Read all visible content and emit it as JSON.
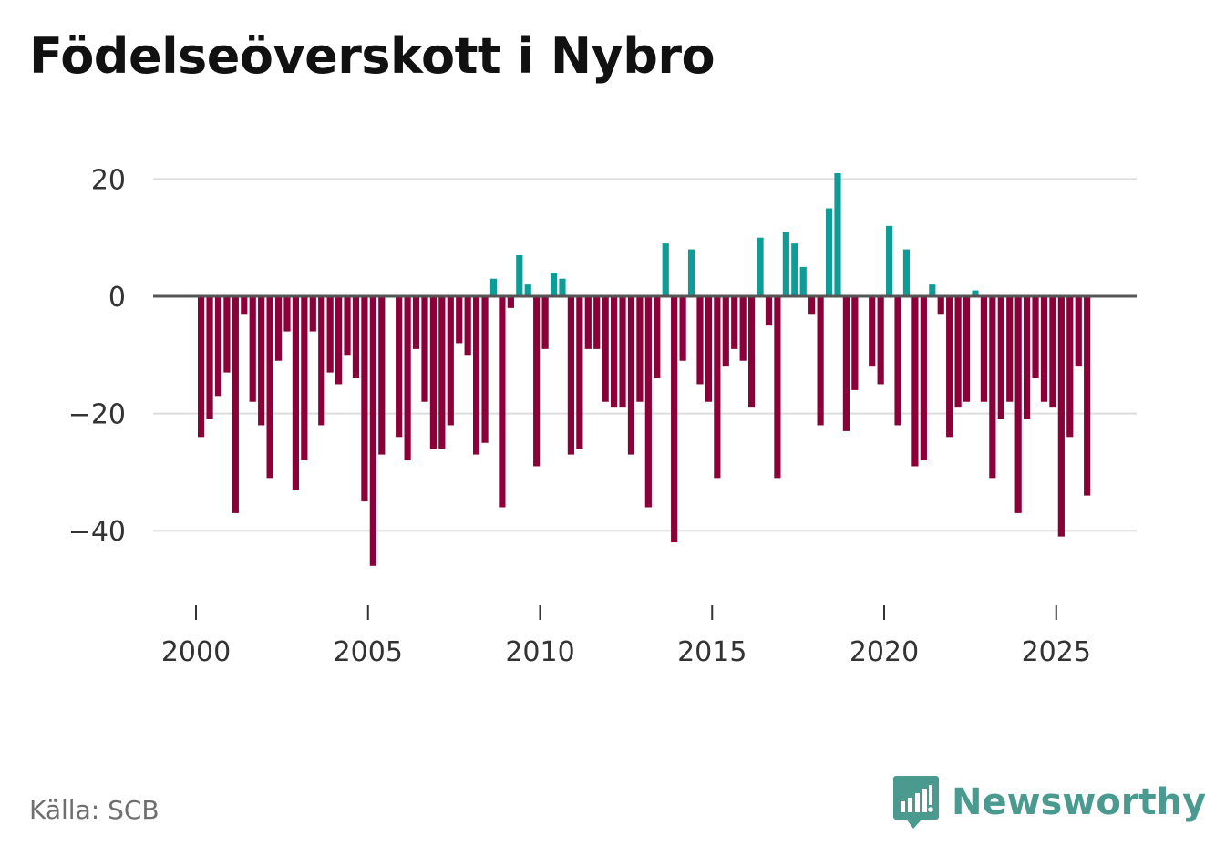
{
  "title": "Födelseöverskott i Nybro",
  "source": "Källa: SCB",
  "brand": {
    "name": "Newsworthy",
    "icon": "bar-chart-speech-bubble-icon"
  },
  "colors": {
    "positive": "#0e9d96",
    "negative": "#8b0039",
    "zero_line": "#555555",
    "grid": "#dddddd",
    "brand": "#4a9a90"
  },
  "chart_data": {
    "type": "bar",
    "title": "Födelseöverskott i Nybro",
    "xlabel": "",
    "ylabel": "",
    "ylim": [
      -50,
      25
    ],
    "xlim": [
      1999,
      2027.5
    ],
    "grid": true,
    "y_ticks": [
      20,
      0,
      -20,
      -40
    ],
    "y_tick_labels": [
      "20",
      "0",
      "−20",
      "−40"
    ],
    "x_ticks": [
      2000,
      2005,
      2010,
      2015,
      2020,
      2025
    ],
    "x_tick_labels": [
      "2000",
      "2005",
      "2010",
      "2015",
      "2020",
      "2025"
    ],
    "start_year": 2000,
    "periods_per_year": 4,
    "series": [
      {
        "name": "Födelseöverskott",
        "values": [
          -24,
          -21,
          -17,
          -13,
          -37,
          -3,
          -18,
          -22,
          -31,
          -11,
          -6,
          -33,
          -28,
          -6,
          -22,
          -13,
          -15,
          -10,
          -14,
          -35,
          -46,
          -27,
          0,
          -24,
          -28,
          -9,
          -18,
          -26,
          -26,
          -22,
          -8,
          -10,
          -27,
          -25,
          3,
          -36,
          -2,
          7,
          2,
          -29,
          -9,
          4,
          3,
          -27,
          -26,
          -9,
          -9,
          -18,
          -19,
          -19,
          -27,
          -18,
          -36,
          -14,
          9,
          -42,
          -11,
          8,
          -15,
          -18,
          -31,
          -12,
          -9,
          -11,
          -19,
          10,
          -5,
          -31,
          11,
          9,
          5,
          -3,
          -22,
          15,
          21,
          -23,
          -16,
          0,
          -12,
          -15,
          12,
          -22,
          8,
          -29,
          -28,
          2,
          -3,
          -24,
          -19,
          -18,
          1,
          -18,
          -31,
          -21,
          -18,
          -37,
          -21,
          -14,
          -18,
          -19,
          -41,
          -24,
          -12,
          -34
        ]
      }
    ]
  }
}
